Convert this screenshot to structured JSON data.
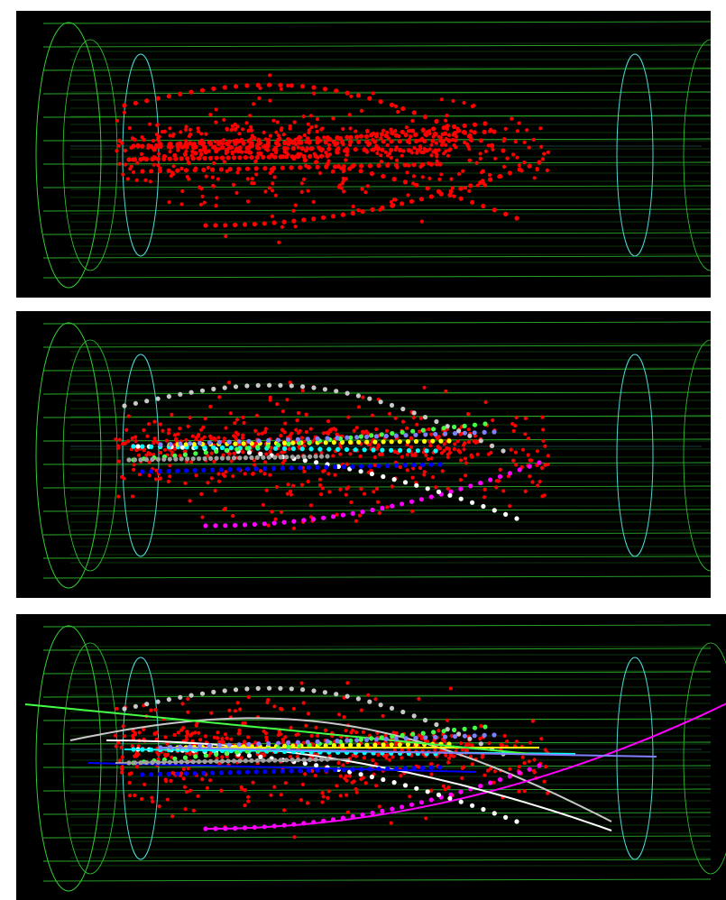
{
  "figure": {
    "panels": [
      {
        "id": "raw-hits",
        "hit_color": "#ff0000",
        "tracks": []
      },
      {
        "id": "found-tracks",
        "hit_color": "#ff0000",
        "tracks": [
          {
            "color": "#c8c8c8"
          },
          {
            "color": "#ff00ff"
          },
          {
            "color": "#ffffff"
          },
          {
            "color": "#0000ff"
          },
          {
            "color": "#00ffff"
          },
          {
            "color": "#ffff00"
          },
          {
            "color": "#44ff44"
          },
          {
            "color": "#a0a0a0"
          },
          {
            "color": "#8080ff"
          }
        ]
      },
      {
        "id": "fitted-tracks",
        "hit_color": "#ff0000",
        "tracks": [
          {
            "color": "#c8c8c8"
          },
          {
            "color": "#ff00ff"
          },
          {
            "color": "#ffffff"
          },
          {
            "color": "#0000ff"
          },
          {
            "color": "#00ffff"
          },
          {
            "color": "#ffff00"
          },
          {
            "color": "#44ff44"
          },
          {
            "color": "#a0a0a0"
          },
          {
            "color": "#8080ff"
          }
        ]
      }
    ],
    "detector": {
      "outer_color": "#33cc33",
      "inner_color": "#4fd6d6"
    }
  }
}
